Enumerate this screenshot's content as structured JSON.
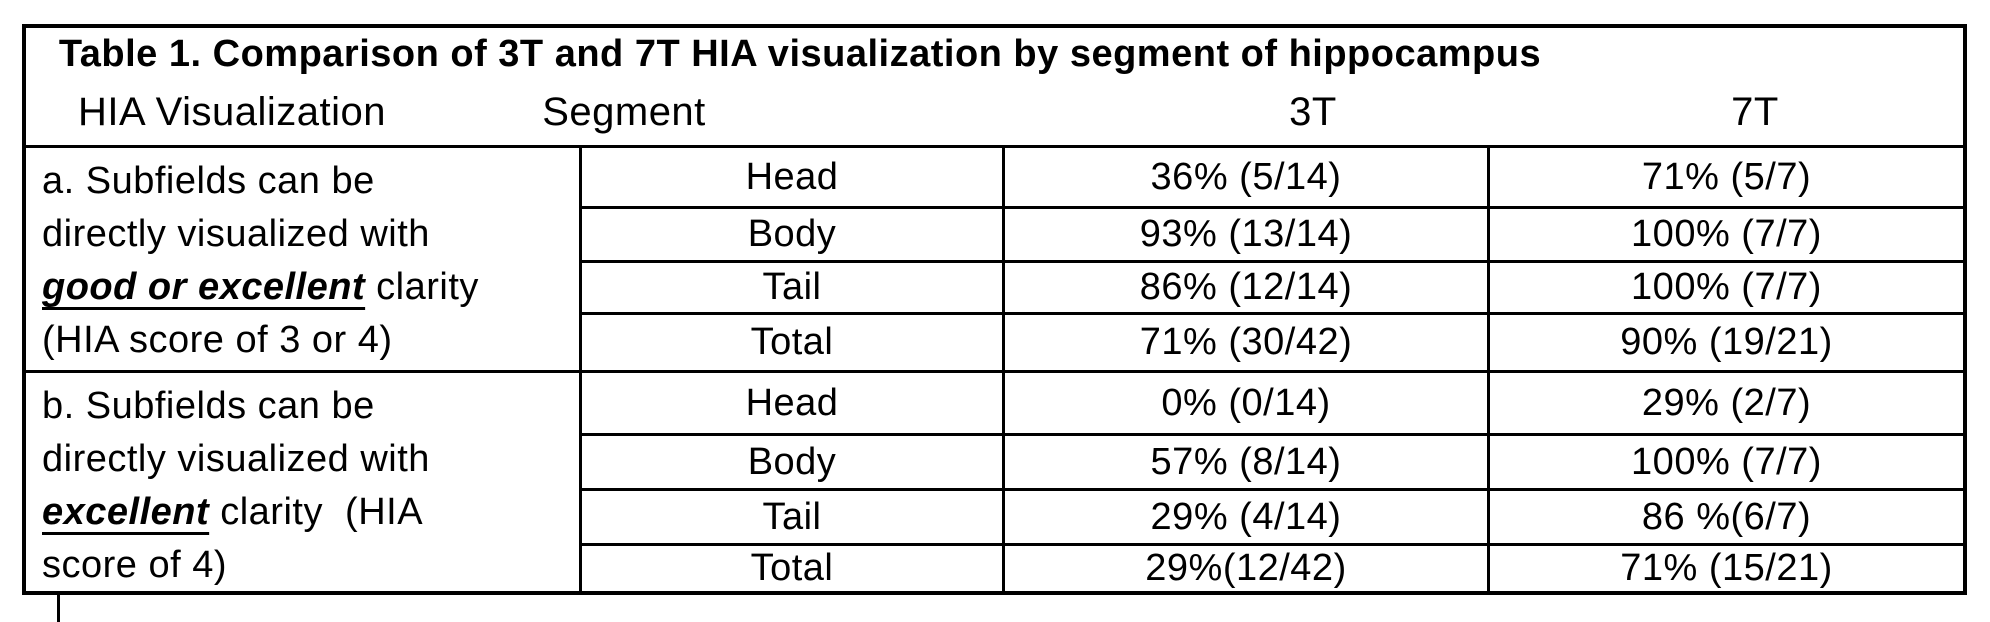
{
  "table": {
    "title": "Table 1. Comparison of 3T and 7T HIA visualization by segment of hippocampus",
    "text_color": "#000000",
    "border_color": "#000000",
    "background_color": "#ffffff",
    "columns": [
      {
        "label": "HIA Visualization"
      },
      {
        "label": "Segment"
      },
      {
        "label": "3T"
      },
      {
        "label": "7T"
      }
    ],
    "sections": [
      {
        "id": "a",
        "label_runs": [
          {
            "text": "a. Subfields can be\ndirectly visualized with\n",
            "emphasis": false
          },
          {
            "text": "good or excellent",
            "emphasis": true
          },
          {
            "text": " clarity\n(HIA score of 3 or 4)",
            "emphasis": false
          }
        ],
        "rows": [
          {
            "segment": "Head",
            "t3": "36% (5/14)",
            "t7": "71% (5/7)"
          },
          {
            "segment": "Body",
            "t3": "93% (13/14)",
            "t7": "100% (7/7)"
          },
          {
            "segment": "Tail",
            "t3": "86% (12/14)",
            "t7": "100% (7/7)"
          },
          {
            "segment": "Total",
            "t3": "71% (30/42)",
            "t7": "90% (19/21)"
          }
        ]
      },
      {
        "id": "b",
        "label_runs": [
          {
            "text": "b. Subfields can be\ndirectly visualized with\n",
            "emphasis": false
          },
          {
            "text": "excellent",
            "emphasis": true
          },
          {
            "text": " clarity  (HIA\nscore of 4)",
            "emphasis": false
          }
        ],
        "rows": [
          {
            "segment": "Head",
            "t3": "0% (0/14)",
            "t7": "29% (2/7)"
          },
          {
            "segment": "Body",
            "t3": "57% (8/14)",
            "t7": "100% (7/7)"
          },
          {
            "segment": "Tail",
            "t3": "29% (4/14)",
            "t7": "86 %(6/7)"
          },
          {
            "segment": "Total",
            "t3": "29%(12/42)",
            "t7": "71% (15/21)"
          }
        ]
      }
    ]
  }
}
